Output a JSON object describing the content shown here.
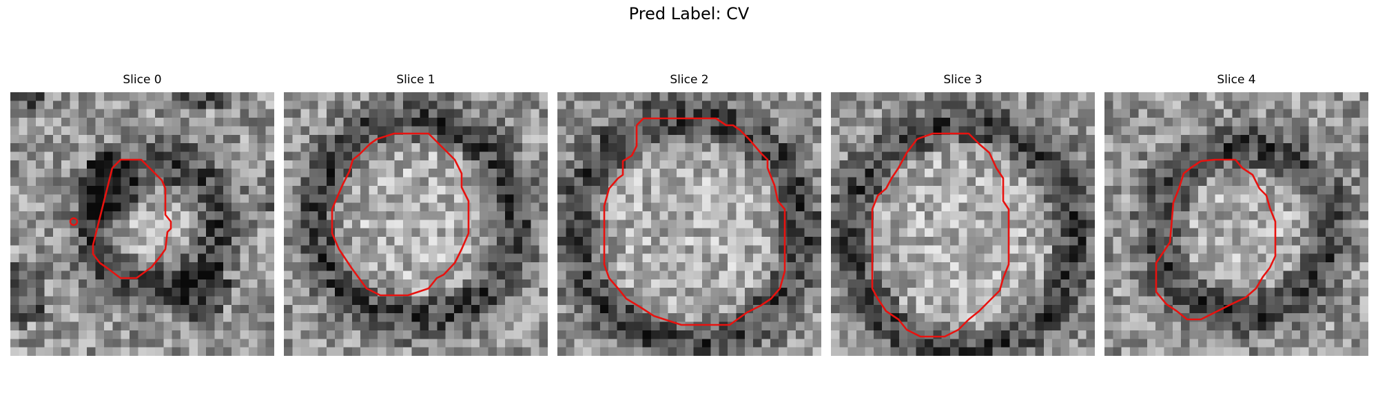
{
  "figure": {
    "suptitle": "Pred Label: CV"
  },
  "panels": [
    {
      "title": "Slice 0"
    },
    {
      "title": "Slice 1"
    },
    {
      "title": "Slice 2"
    },
    {
      "title": "Slice 3"
    },
    {
      "title": "Slice 4"
    }
  ],
  "colors": {
    "contour": "#e8120f",
    "colormap": "gray"
  }
}
